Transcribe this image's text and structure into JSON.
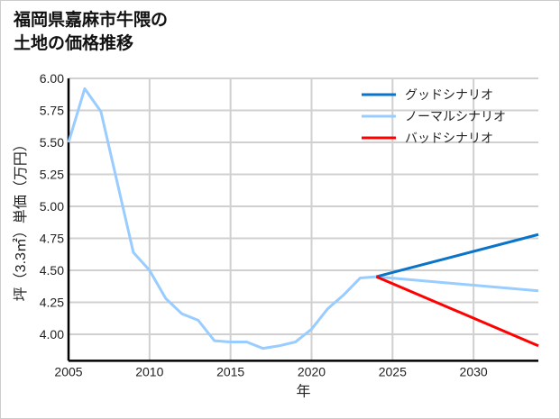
{
  "title_lines": [
    "福岡県嘉麻市牛隈の",
    "土地の価格推移"
  ],
  "chart_data": {
    "type": "line",
    "title": "福岡県嘉麻市牛隈の土地の価格推移",
    "xlabel": "年",
    "ylabel": "坪（3.3㎡）単価（万円）",
    "xlim": [
      2005,
      2034
    ],
    "ylim": [
      3.8,
      6.0
    ],
    "xticks": [
      2005,
      2010,
      2015,
      2020,
      2025,
      2030
    ],
    "yticks": [
      4.0,
      4.25,
      4.5,
      4.75,
      5.0,
      5.25,
      5.5,
      5.75,
      6.0
    ],
    "ytick_labels": [
      "4.00",
      "4.25",
      "4.50",
      "4.75",
      "5.00",
      "5.25",
      "5.50",
      "5.75",
      "6.00"
    ],
    "grid": true,
    "legend_position": "top-right",
    "series": [
      {
        "name": "グッドシナリオ",
        "color": "#0a74c8",
        "x": [
          2024,
          2034
        ],
        "y": [
          4.45,
          4.78
        ]
      },
      {
        "name": "ノーマルシナリオ",
        "color": "#99ccff",
        "x": [
          2005,
          2006,
          2007,
          2008,
          2009,
          2010,
          2011,
          2012,
          2013,
          2014,
          2015,
          2016,
          2017,
          2018,
          2019,
          2020,
          2021,
          2022,
          2023,
          2024,
          2034
        ],
        "y": [
          5.5,
          5.92,
          5.74,
          5.19,
          4.64,
          4.5,
          4.28,
          4.16,
          4.11,
          3.95,
          3.94,
          3.94,
          3.89,
          3.91,
          3.94,
          4.04,
          4.2,
          4.31,
          4.44,
          4.45,
          4.34
        ]
      },
      {
        "name": "バッドシナリオ",
        "color": "#ff0000",
        "x": [
          2024,
          2034
        ],
        "y": [
          4.45,
          3.91
        ]
      }
    ]
  }
}
